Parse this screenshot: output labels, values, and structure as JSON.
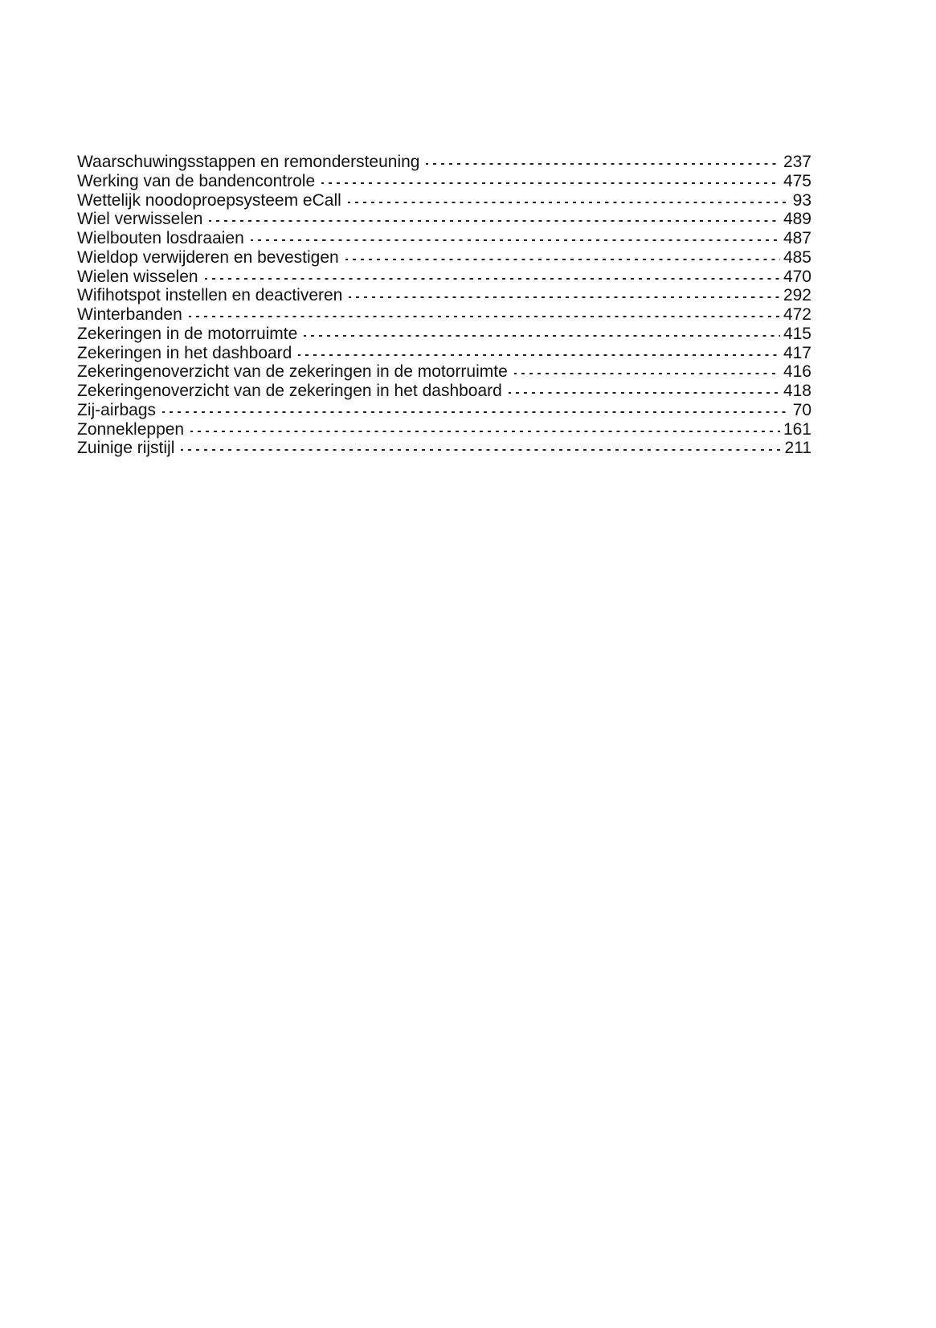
{
  "entries": [
    {
      "term": "Waarschuwingsstappen en remondersteuning",
      "page": "237"
    },
    {
      "term": "Werking van de bandencontrole",
      "page": "475"
    },
    {
      "term": "Wettelijk noodoproepsysteem eCall",
      "page": "93"
    },
    {
      "term": "Wiel verwisselen",
      "page": "489"
    },
    {
      "term": "Wielbouten losdraaien",
      "page": "487"
    },
    {
      "term": "Wieldop verwijderen en bevestigen",
      "page": "485"
    },
    {
      "term": "Wielen wisselen",
      "page": "470"
    },
    {
      "term": "Wifihotspot instellen en deactiveren",
      "page": "292"
    },
    {
      "term": "Winterbanden",
      "page": "472"
    },
    {
      "term": "Zekeringen in de motorruimte",
      "page": "415"
    },
    {
      "term": "Zekeringen in het dashboard",
      "page": "417"
    },
    {
      "term": "Zekeringenoverzicht van de zekeringen in de motorruimte",
      "page": "416"
    },
    {
      "term": "Zekeringenoverzicht van de zekeringen in het dashboard",
      "page": "418"
    },
    {
      "term": "Zij-airbags",
      "page": "70"
    },
    {
      "term": "Zonnekleppen",
      "page": "161"
    },
    {
      "term": "Zuinige rijstijl",
      "page": "211"
    }
  ]
}
